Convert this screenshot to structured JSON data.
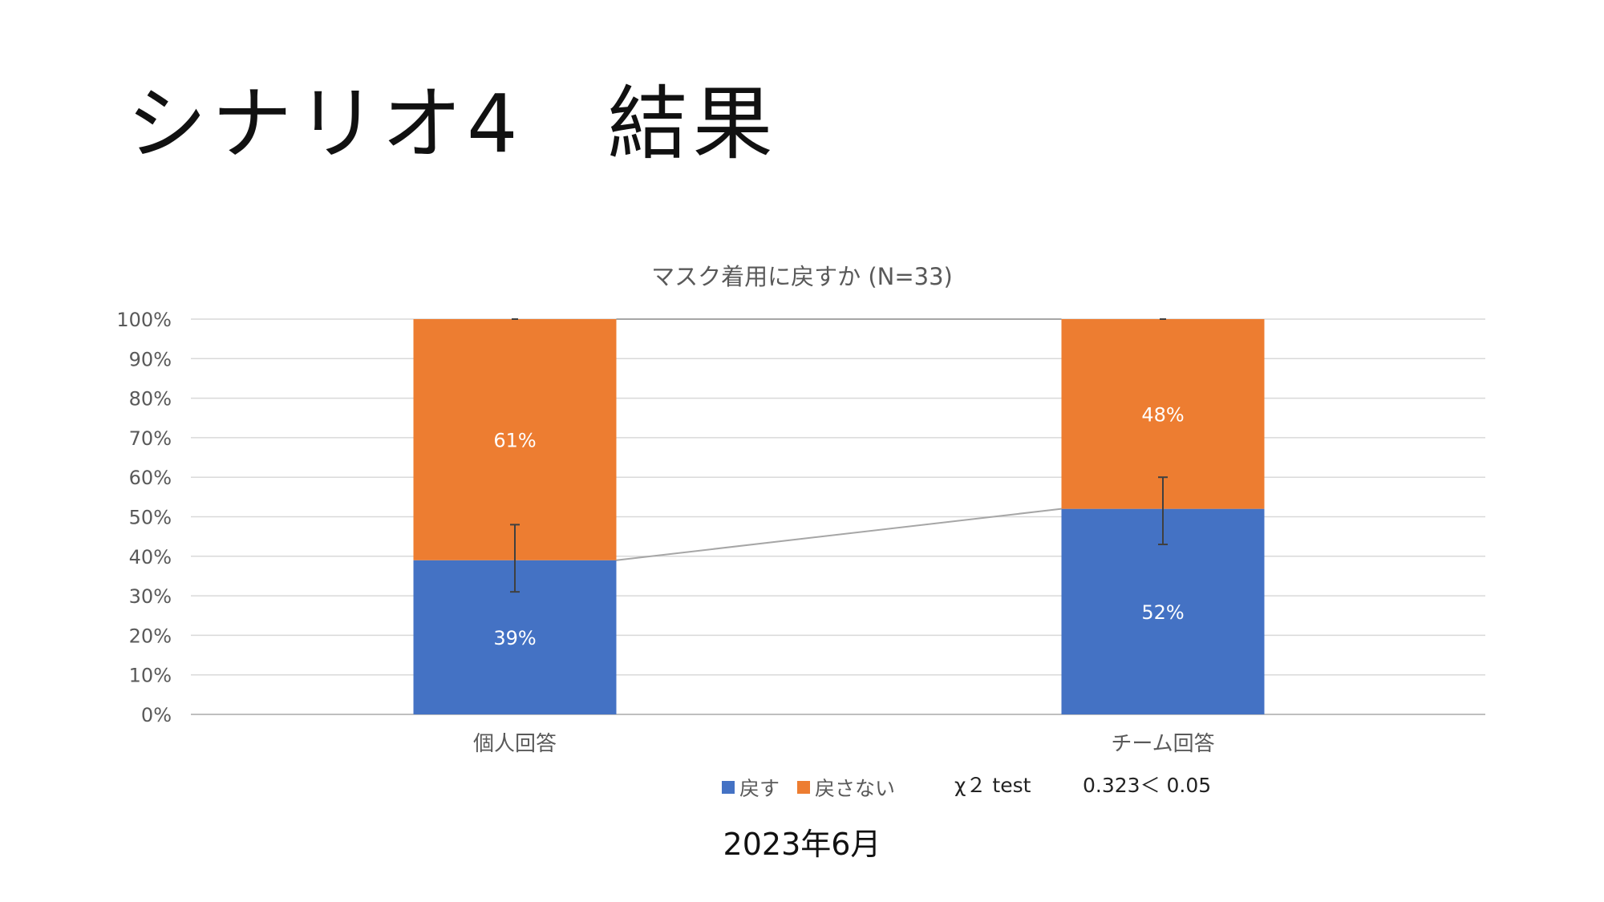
{
  "slide": {
    "title": "シナリオ4　結果",
    "date": "2023年6月"
  },
  "stats": {
    "test_label": "χ２ test",
    "result": "0.323＜ 0.05"
  },
  "chart_data": {
    "type": "bar",
    "stacked": true,
    "title": "マスク着用に戻すか (N=33)",
    "categories": [
      "個人回答",
      "チーム回答"
    ],
    "series": [
      {
        "name": "戻す",
        "values": [
          39,
          52
        ],
        "labels": [
          "39%",
          "52%"
        ],
        "color": "#4472C4"
      },
      {
        "name": "戻さない",
        "values": [
          61,
          48
        ],
        "labels": [
          "61%",
          "48%"
        ],
        "color": "#ED7D31"
      }
    ],
    "error_bars": [
      {
        "category": "個人回答",
        "center": 39,
        "low": 31,
        "high": 48
      },
      {
        "category": "チーム回答",
        "center": 52,
        "low": 43,
        "high": 60
      }
    ],
    "series_lines": true,
    "ylim": [
      0,
      100
    ],
    "yticks": [
      "0%",
      "10%",
      "20%",
      "30%",
      "40%",
      "50%",
      "60%",
      "70%",
      "80%",
      "90%",
      "100%"
    ],
    "grid": true,
    "legend": "bottom"
  }
}
